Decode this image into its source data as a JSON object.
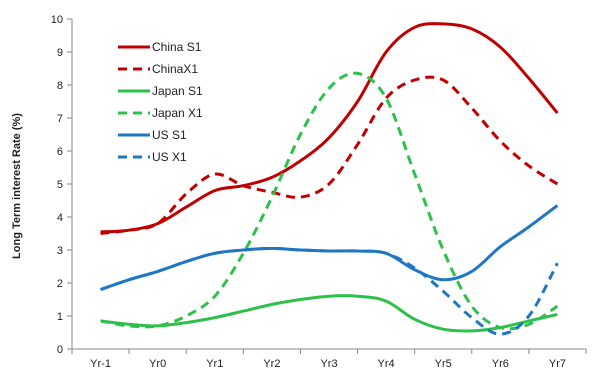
{
  "chart_data": {
    "type": "line",
    "title": "",
    "xlabel": "",
    "ylabel": "Long Term interest Rate (%)",
    "categories": [
      "Yr-1",
      "Yr0",
      "Yr1",
      "Yr2",
      "Yr3",
      "Yr4",
      "Yr5",
      "Yr6",
      "Yr7"
    ],
    "ylim": [
      0,
      10
    ],
    "yticks": [
      "0",
      "1",
      "2",
      "3",
      "4",
      "5",
      "6",
      "7",
      "8",
      "9",
      "10"
    ],
    "grid": false,
    "legend_position": "top-left",
    "series": [
      {
        "name": "China S1",
        "color": "#c00000",
        "dash": "solid",
        "x": [
          -1,
          -0.5,
          0,
          0.5,
          1,
          1.5,
          2,
          2.5,
          3,
          3.5,
          4,
          4.5,
          5,
          5.5,
          6,
          6.5,
          7
        ],
        "values": [
          3.55,
          3.6,
          3.8,
          4.3,
          4.8,
          4.95,
          5.2,
          5.7,
          6.4,
          7.5,
          9.0,
          9.75,
          9.85,
          9.7,
          9.15,
          8.2,
          7.15
        ]
      },
      {
        "name": "ChinaX1",
        "color": "#c00000",
        "dash": "dashed",
        "x": [
          -1,
          -0.5,
          0,
          0.5,
          1,
          1.5,
          2,
          2.5,
          3,
          3.5,
          4,
          4.5,
          5,
          5.5,
          6,
          6.5,
          7
        ],
        "values": [
          3.5,
          3.6,
          3.8,
          4.7,
          5.3,
          4.95,
          4.75,
          4.6,
          5.0,
          6.2,
          7.6,
          8.15,
          8.15,
          7.3,
          6.3,
          5.55,
          5.0
        ]
      },
      {
        "name": "Japan S1",
        "color": "#2ec04a",
        "dash": "solid",
        "x": [
          -1,
          -0.5,
          0,
          0.5,
          1,
          1.5,
          2,
          2.5,
          3,
          3.5,
          4,
          4.5,
          5,
          5.5,
          6,
          6.5,
          7
        ],
        "values": [
          0.85,
          0.75,
          0.7,
          0.8,
          0.95,
          1.15,
          1.35,
          1.5,
          1.6,
          1.6,
          1.45,
          0.9,
          0.6,
          0.55,
          0.65,
          0.85,
          1.05
        ]
      },
      {
        "name": "Japan X1",
        "color": "#2ec04a",
        "dash": "dashed",
        "x": [
          -1,
          -0.5,
          0,
          0.5,
          1,
          1.5,
          2,
          2.5,
          3,
          3.5,
          4,
          4.5,
          5,
          5.5,
          6,
          6.5,
          7
        ],
        "values": [
          0.85,
          0.7,
          0.7,
          1.0,
          1.6,
          2.9,
          4.6,
          6.5,
          7.9,
          8.35,
          7.6,
          5.3,
          3.0,
          1.3,
          0.65,
          0.75,
          1.3
        ]
      },
      {
        "name": "US S1",
        "color": "#1f77c4",
        "dash": "solid",
        "x": [
          -1,
          -0.5,
          0,
          0.5,
          1,
          1.5,
          2,
          2.5,
          3,
          3.5,
          4,
          4.5,
          5,
          5.5,
          6,
          6.5,
          7
        ],
        "values": [
          1.8,
          2.1,
          2.35,
          2.65,
          2.9,
          3.0,
          3.05,
          3.0,
          2.97,
          2.97,
          2.9,
          2.4,
          2.1,
          2.35,
          3.1,
          3.7,
          4.35
        ]
      },
      {
        "name": "US X1",
        "color": "#1f77c4",
        "dash": "dashed",
        "x": [
          -1,
          -0.5,
          0,
          0.5,
          1,
          1.5,
          2,
          2.5,
          3,
          3.5,
          4,
          4.5,
          5,
          5.5,
          6,
          6.5,
          7
        ],
        "values": [
          1.8,
          2.1,
          2.35,
          2.65,
          2.9,
          3.0,
          3.05,
          3.0,
          2.97,
          2.97,
          2.9,
          2.45,
          1.75,
          0.95,
          0.45,
          1.0,
          2.6
        ]
      }
    ]
  }
}
